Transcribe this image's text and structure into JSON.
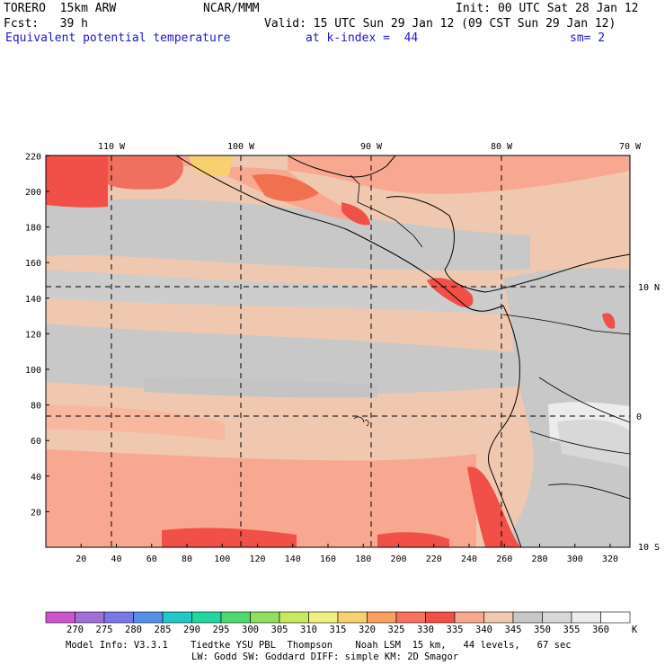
{
  "header": {
    "model": "TORERO  15km ARW",
    "center": "NCAR/MMM",
    "init": "Init: 00 UTC Sat 28 Jan 12",
    "fcst": "Fcst:   39 h",
    "valid": "Valid: 15 UTC Sun 29 Jan 12 (09 CST Sun 29 Jan 12)",
    "field": "Equivalent potential temperature",
    "level": "at k-index =  44",
    "smooth": "sm= 2"
  },
  "map": {
    "top_lon_labels": [
      "110 W",
      "100 W",
      "90 W",
      "80 W",
      "70 W"
    ],
    "right_lat_labels": [
      "10 N",
      "0",
      "10 S"
    ],
    "left_y_ticks": [
      "20",
      "40",
      "60",
      "80",
      "100",
      "120",
      "140",
      "160",
      "180",
      "200",
      "220"
    ],
    "bottom_x_ticks": [
      "20",
      "40",
      "60",
      "80",
      "100",
      "120",
      "140",
      "160",
      "180",
      "200",
      "220",
      "240",
      "260",
      "280",
      "300",
      "320"
    ]
  },
  "colorbar": {
    "labels": [
      "270",
      "275",
      "280",
      "285",
      "290",
      "295",
      "300",
      "305",
      "310",
      "315",
      "320",
      "325",
      "330",
      "335",
      "340",
      "345",
      "350",
      "355",
      "360"
    ],
    "unit": "K",
    "colors": [
      "#cc55cc",
      "#a070d8",
      "#7878e8",
      "#5590e8",
      "#20c8c8",
      "#20d8a0",
      "#50d870",
      "#90e060",
      "#c8e860",
      "#f0f080",
      "#f8d070",
      "#f8a060",
      "#f87060",
      "#f05048",
      "#f8a890",
      "#f0c8b0",
      "#c8c8c8",
      "#d8d8d8",
      "#ececec",
      "#ffffff"
    ]
  },
  "footer": {
    "line1": "Model Info: V3.3.1    Tiedtke YSU PBL  Thompson    Noah LSM  15 km,   44 levels,   67 sec",
    "line2": "LW: Godd SW: Goddard DIFF: simple KM: 2D Smagor"
  }
}
